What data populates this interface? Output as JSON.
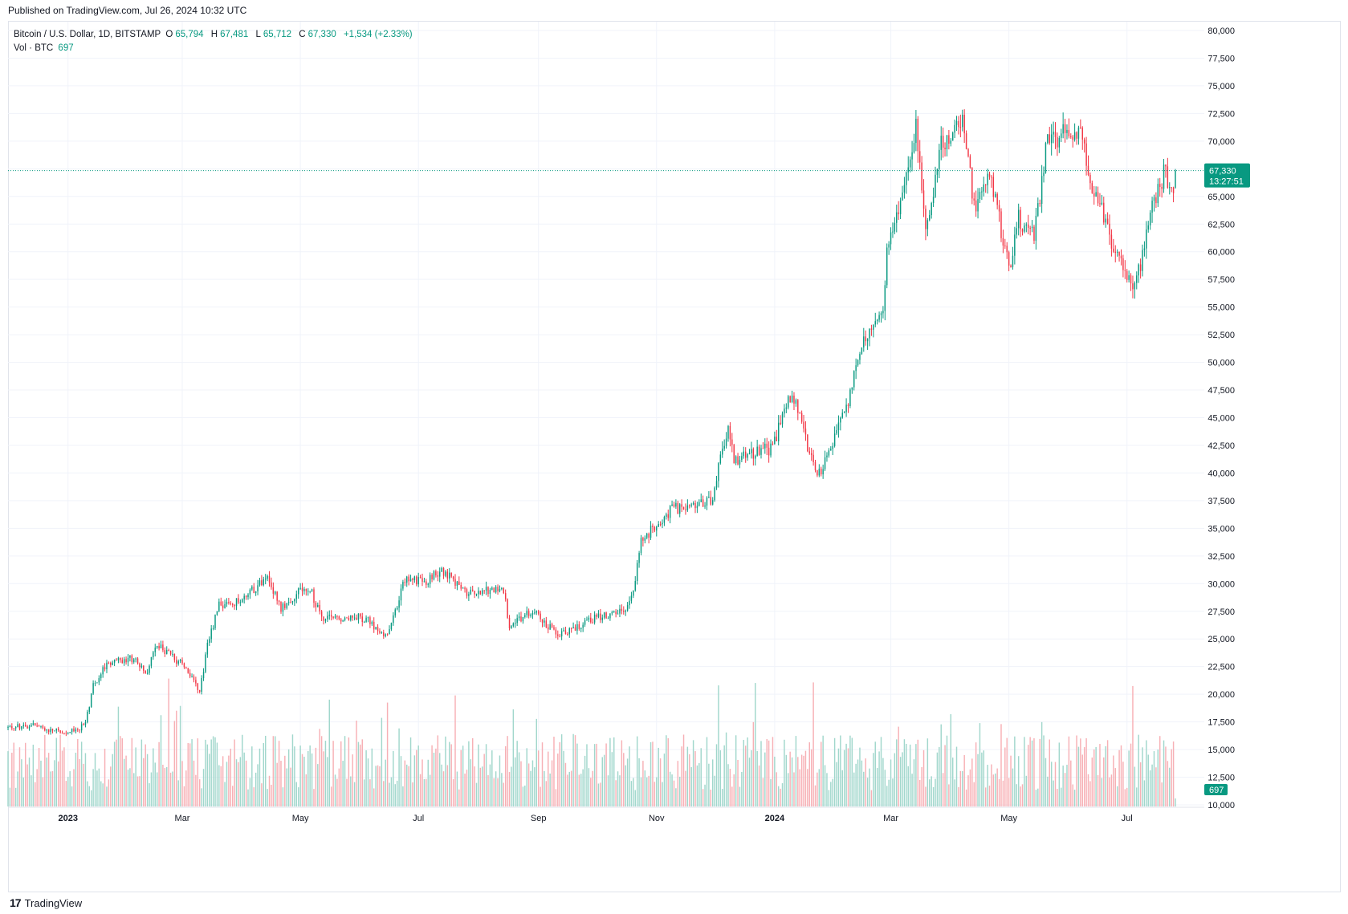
{
  "header": {
    "published": "Published on TradingView.com, Jul 26, 2024 10:32 UTC"
  },
  "legend": {
    "symbol": "Bitcoin / U.S. Dollar, 1D, BITSTAMP",
    "o_label": "O",
    "o_value": "65,794",
    "h_label": "H",
    "h_value": "67,481",
    "l_label": "L",
    "l_value": "65,712",
    "c_label": "C",
    "c_value": "67,330",
    "change": "+1,534 (+2.33%)",
    "vol_label": "Vol · BTC",
    "vol_value": "697"
  },
  "price_tag": {
    "price": "67,330",
    "countdown": "13:27:51"
  },
  "volume_tag": "697",
  "footer": {
    "brand": "TradingView",
    "logo_glyph": "17"
  },
  "colors": {
    "up": "#089981",
    "down": "#f23645",
    "up_vol": "#a1d7cc",
    "down_vol": "#f7b0b5",
    "grid": "#f0f3fa"
  },
  "chart_data": {
    "type": "candlestick",
    "symbol": "Bitcoin / U.S. Dollar, 1D, BITSTAMP",
    "ylim": [
      10000,
      80000
    ],
    "y_ticks": [
      "80,000",
      "77,500",
      "75,000",
      "72,500",
      "70,000",
      "67,500",
      "65,000",
      "62,500",
      "60,000",
      "57,500",
      "55,000",
      "52,500",
      "50,000",
      "47,500",
      "45,000",
      "42,500",
      "40,000",
      "37,500",
      "35,000",
      "32,500",
      "30,000",
      "27,500",
      "25,000",
      "22,500",
      "20,000",
      "17,500",
      "15,000",
      "12,500",
      "10,000"
    ],
    "x_ticks": [
      {
        "label": "2023",
        "month": "2023-01",
        "bold": true
      },
      {
        "label": "Mar",
        "month": "2023-03"
      },
      {
        "label": "May",
        "month": "2023-05"
      },
      {
        "label": "Jul",
        "month": "2023-07"
      },
      {
        "label": "Sep",
        "month": "2023-09"
      },
      {
        "label": "Nov",
        "month": "2023-11"
      },
      {
        "label": "2024",
        "month": "2024-01",
        "bold": true
      },
      {
        "label": "Mar",
        "month": "2024-03"
      },
      {
        "label": "May",
        "month": "2024-05"
      },
      {
        "label": "Jul",
        "month": "2024-07"
      }
    ],
    "date_range": [
      "2022-12-01",
      "2024-07-26"
    ],
    "last_close": 67330,
    "price_path": [
      [
        "2022-12-01",
        17000
      ],
      [
        "2022-12-15",
        17200
      ],
      [
        "2022-12-20",
        16800
      ],
      [
        "2022-12-31",
        16600
      ],
      [
        "2023-01-07",
        16950
      ],
      [
        "2023-01-10",
        17400
      ],
      [
        "2023-01-14",
        20800
      ],
      [
        "2023-01-21",
        22800
      ],
      [
        "2023-01-31",
        23100
      ],
      [
        "2023-02-05",
        23300
      ],
      [
        "2023-02-10",
        21700
      ],
      [
        "2023-02-16",
        24600
      ],
      [
        "2023-02-25",
        23200
      ],
      [
        "2023-03-03",
        22400
      ],
      [
        "2023-03-10",
        20200
      ],
      [
        "2023-03-14",
        24400
      ],
      [
        "2023-03-20",
        28000
      ],
      [
        "2023-03-31",
        28400
      ],
      [
        "2023-04-11",
        30200
      ],
      [
        "2023-04-14",
        30500
      ],
      [
        "2023-04-21",
        27800
      ],
      [
        "2023-04-30",
        29300
      ],
      [
        "2023-05-06",
        29600
      ],
      [
        "2023-05-12",
        26800
      ],
      [
        "2023-05-31",
        27100
      ],
      [
        "2023-06-06",
        26500
      ],
      [
        "2023-06-15",
        25100
      ],
      [
        "2023-06-21",
        28800
      ],
      [
        "2023-06-23",
        30400
      ],
      [
        "2023-07-06",
        30300
      ],
      [
        "2023-07-13",
        31300
      ],
      [
        "2023-07-25",
        29200
      ],
      [
        "2023-08-14",
        29400
      ],
      [
        "2023-08-17",
        26200
      ],
      [
        "2023-08-29",
        27700
      ],
      [
        "2023-09-11",
        25300
      ],
      [
        "2023-09-30",
        26900
      ],
      [
        "2023-10-16",
        27600
      ],
      [
        "2023-10-20",
        29600
      ],
      [
        "2023-10-24",
        33900
      ],
      [
        "2023-11-09",
        36700
      ],
      [
        "2023-11-30",
        37700
      ],
      [
        "2023-12-04",
        41900
      ],
      [
        "2023-12-08",
        44200
      ],
      [
        "2023-12-11",
        41200
      ],
      [
        "2023-12-31",
        42300
      ],
      [
        "2024-01-08",
        46900
      ],
      [
        "2024-01-11",
        46600
      ],
      [
        "2024-01-23",
        39500
      ],
      [
        "2024-01-31",
        42600
      ],
      [
        "2024-02-09",
        47100
      ],
      [
        "2024-02-15",
        51900
      ],
      [
        "2024-02-26",
        54500
      ],
      [
        "2024-02-28",
        60500
      ],
      [
        "2024-03-05",
        63800
      ],
      [
        "2024-03-14",
        71400
      ],
      [
        "2024-03-19",
        62000
      ],
      [
        "2024-03-27",
        69500
      ],
      [
        "2024-04-08",
        71600
      ],
      [
        "2024-04-13",
        64000
      ],
      [
        "2024-04-22",
        66800
      ],
      [
        "2024-05-01",
        58300
      ],
      [
        "2024-05-06",
        63100
      ],
      [
        "2024-05-14",
        61500
      ],
      [
        "2024-05-21",
        70100
      ],
      [
        "2024-06-06",
        71100
      ],
      [
        "2024-06-11",
        67300
      ],
      [
        "2024-06-24",
        60300
      ],
      [
        "2024-07-05",
        56600
      ],
      [
        "2024-07-15",
        64700
      ],
      [
        "2024-07-20",
        67100
      ],
      [
        "2024-07-25",
        65800
      ],
      [
        "2024-07-26",
        67330
      ]
    ],
    "highs_lows": {
      "high": 73700,
      "high_date": "2024-03-14",
      "low": 16300,
      "low_date": "2022-12-30"
    }
  }
}
